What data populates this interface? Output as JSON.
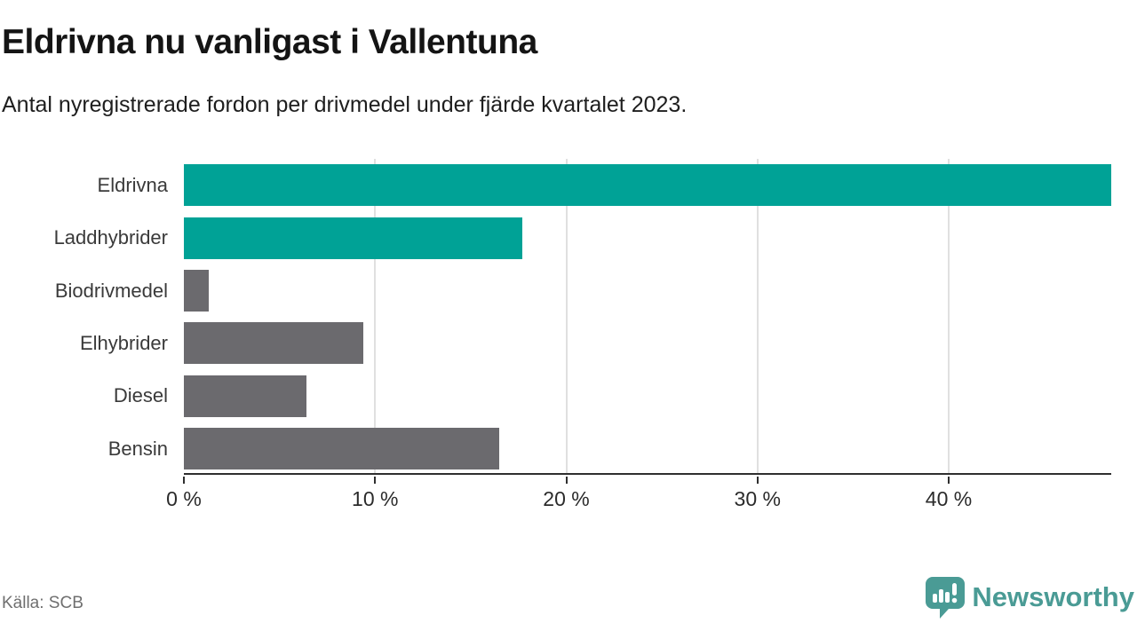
{
  "header": {
    "title": "Eldrivna nu vanligast i Vallentuna",
    "subtitle": "Antal nyregistrerade fordon per drivmedel under fjärde kvartalet 2023."
  },
  "chart_data": {
    "type": "bar",
    "orientation": "horizontal",
    "title": "Eldrivna nu vanligast i Vallentuna",
    "subtitle": "Antal nyregistrerade fordon per drivmedel under fjärde kvartalet 2023.",
    "categories": [
      "Eldrivna",
      "Laddhybrider",
      "Biodrivmedel",
      "Elhybrider",
      "Diesel",
      "Bensin"
    ],
    "values": [
      48.5,
      17.7,
      1.3,
      9.4,
      6.4,
      16.5
    ],
    "unit": "%",
    "xlim": [
      0,
      48.5
    ],
    "xticks": [
      0,
      10,
      20,
      30,
      40
    ],
    "xtick_suffix": " %",
    "grid": "vertical",
    "legend": "none",
    "bar_colors": [
      "#00a296",
      "#00a296",
      "#6b6a6e",
      "#6b6a6e",
      "#6b6a6e",
      "#6b6a6e"
    ]
  },
  "colors": {
    "accent_teal": "#00a296",
    "neutral_gray": "#6b6a6e",
    "gridline": "#e0e0e0",
    "axis": "#2f2f2f",
    "brand_teal": "#4a9b95"
  },
  "footer": {
    "source": "Källa: SCB",
    "brand": "Newsworthy"
  }
}
